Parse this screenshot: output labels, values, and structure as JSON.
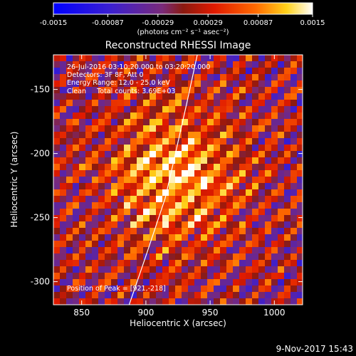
{
  "chart_data": {
    "type": "heatmap",
    "title": "Reconstructed RHESSI Image",
    "xlabel": "Heliocentric X (arcsec)",
    "ylabel": "Heliocentric Y (arcsec)",
    "xlim": [
      828,
      1022
    ],
    "ylim": [
      -318,
      -123
    ],
    "xticks": [
      850,
      900,
      950,
      1000
    ],
    "yticks": [
      -150,
      -200,
      -250,
      -300
    ],
    "colorbar": {
      "min": -0.0015,
      "max": 0.0015,
      "ticks": [
        "-0.0015",
        "-0.00087",
        "-0.00029",
        "0.00029",
        "0.00087",
        "0.0015"
      ],
      "tick_values": [
        -0.0015,
        -0.00087,
        -0.00029,
        0.00029,
        0.00087,
        0.0015
      ],
      "units_label": "(photons cm⁻² s⁻¹ asec⁻²)"
    },
    "annotations": [
      "26-Jul-2016 03:10:20.000 to 03:20:20.000",
      "Detectors: 3F 8F, Att 0",
      "Energy Range: 12.0 - 25.0 keV",
      "Clean     Total counts: 3.69E+03"
    ],
    "peak": {
      "x": 921,
      "y": -218
    },
    "peak_label": "Position of Peak = [921,-218]",
    "limb_curve": [
      [
        887,
        -318
      ],
      [
        900,
        -280
      ],
      [
        915,
        -235
      ],
      [
        923,
        -200
      ],
      [
        932,
        -160
      ],
      [
        940,
        -123
      ]
    ]
  },
  "footer": {
    "date": "9-Nov-2017 15:43"
  }
}
